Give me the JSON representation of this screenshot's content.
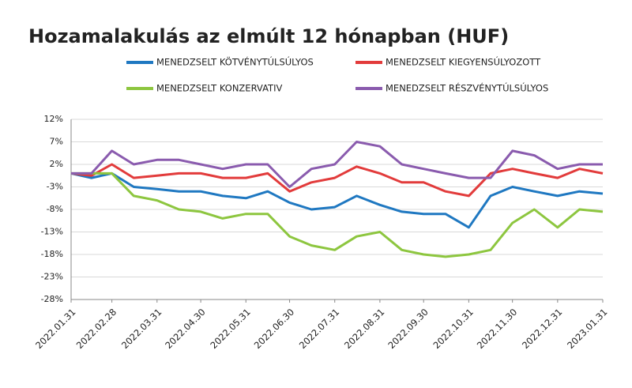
{
  "chart_data": {
    "type": "line",
    "title": "Hozamalakulás az elmúlt 12 hónapban (HUF)",
    "x": [
      "2022.01.31",
      "2022.02.14",
      "2022.02.28",
      "2022.03.15",
      "2022.03.31",
      "2022.04.15",
      "2022.04.30",
      "2022.05.15",
      "2022.05.31",
      "2022.06.15",
      "2022.06.30",
      "2022.07.15",
      "2022.07.31",
      "2022.08.15",
      "2022.08.31",
      "2022.09.15",
      "2022.09.30",
      "2022.10.15",
      "2022.10.31",
      "2022.11.15",
      "2022.11.30",
      "2022.12.15",
      "2022.12.31",
      "2023.01.15",
      "2023.01.31"
    ],
    "xlim": [
      "2022.01.31",
      "2023.01.31"
    ],
    "xticks": [
      "2022.01.31",
      "2022.02.28",
      "2022.03.31",
      "2022.04.30",
      "2022.05.31",
      "2022.06.30",
      "2022.07.31",
      "2022.08.31",
      "2022.09.30",
      "2022.10.31",
      "2022.11.30",
      "2022.12.31",
      "2023.01.31"
    ],
    "ylim": [
      -28,
      12
    ],
    "yticks": [
      {
        "value": 12,
        "label": "12%"
      },
      {
        "value": 7,
        "label": "7%"
      },
      {
        "value": 2,
        "label": "2%"
      },
      {
        "value": -3,
        "label": "-3%"
      },
      {
        "value": -8,
        "label": "-8%"
      },
      {
        "value": -13,
        "label": "-13%"
      },
      {
        "value": -18,
        "label": "-18%"
      },
      {
        "value": -23,
        "label": "-23%"
      },
      {
        "value": -28,
        "label": "-28%"
      }
    ],
    "grid": true,
    "series": [
      {
        "name": "MENEDZSELT KÖTVÉNYTÚLSÚLYOS",
        "color": "#1f78c1",
        "values": [
          0,
          -1,
          0,
          -3,
          -3.5,
          -4,
          -4,
          -5,
          -5.5,
          -4,
          -6.5,
          -8,
          -7.5,
          -5,
          -7,
          -8.5,
          -9,
          -9,
          -12,
          -5,
          -3,
          -4,
          -5,
          -4,
          -4.5
        ]
      },
      {
        "name": "MENEDZSELT KIEGYENSÚLYOZOTT",
        "color": "#e23b3b",
        "values": [
          0,
          -0.5,
          2,
          -1,
          -0.5,
          0,
          0,
          -1,
          -1,
          0,
          -4,
          -2,
          -1,
          1.5,
          0,
          -2,
          -2,
          -4,
          -5,
          0,
          1,
          0,
          -1,
          1,
          0
        ]
      },
      {
        "name": "MENEDZSELT KONZERVATIV",
        "color": "#8dc63f",
        "values": [
          0,
          0,
          0,
          -5,
          -6,
          -8,
          -8.5,
          -10,
          -9,
          -9,
          -14,
          -16,
          -17,
          -14,
          -13,
          -17,
          -18,
          -18.5,
          -18,
          -17,
          -11,
          -8,
          -12,
          -8,
          -8.5
        ]
      },
      {
        "name": "MENEDZSELT RÉSZVÉNYTÚLSÚLYOS",
        "color": "#8a5bae",
        "values": [
          0,
          0,
          5,
          2,
          3,
          3,
          2,
          1,
          2,
          2,
          -3,
          1,
          2,
          7,
          6,
          2,
          1,
          0,
          -1,
          -1,
          5,
          4,
          1,
          2,
          2
        ]
      }
    ]
  }
}
